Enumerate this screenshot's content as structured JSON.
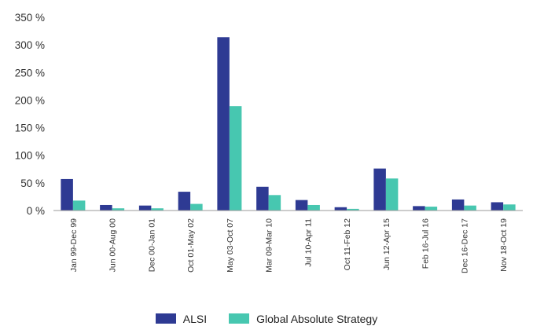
{
  "chart_data": {
    "type": "bar",
    "categories": [
      "Jan 99-Dec 99",
      "Jun 00-Aug 00",
      "Dec 00-Jan 01",
      "Oct 01-May 02",
      "May 03-Oct 07",
      "Mar 09-Mar 10",
      "Jul 10-Apr 11",
      "Oct 11-Feb 12",
      "Jun 12-Apr 15",
      "Feb 16-Jul 16",
      "Dec 16-Dec 17",
      "Nov 18-Oct 19"
    ],
    "series": [
      {
        "name": "ALSI",
        "color": "#2E3A93",
        "values": [
          57,
          10,
          9,
          34,
          314,
          43,
          19,
          6,
          76,
          8,
          20,
          15
        ]
      },
      {
        "name": "Global Absolute Strategy",
        "color": "#47C7B0",
        "values": [
          18,
          4,
          4,
          12,
          189,
          28,
          10,
          3,
          58,
          7,
          9,
          11
        ]
      }
    ],
    "ylim": [
      0,
      350
    ],
    "yticks": [
      "0 %",
      "50 %",
      "100 %",
      "150 %",
      "200 %",
      "250 %",
      "300 %",
      "350 %"
    ],
    "grid": false,
    "legend_position": "bottom-center"
  }
}
